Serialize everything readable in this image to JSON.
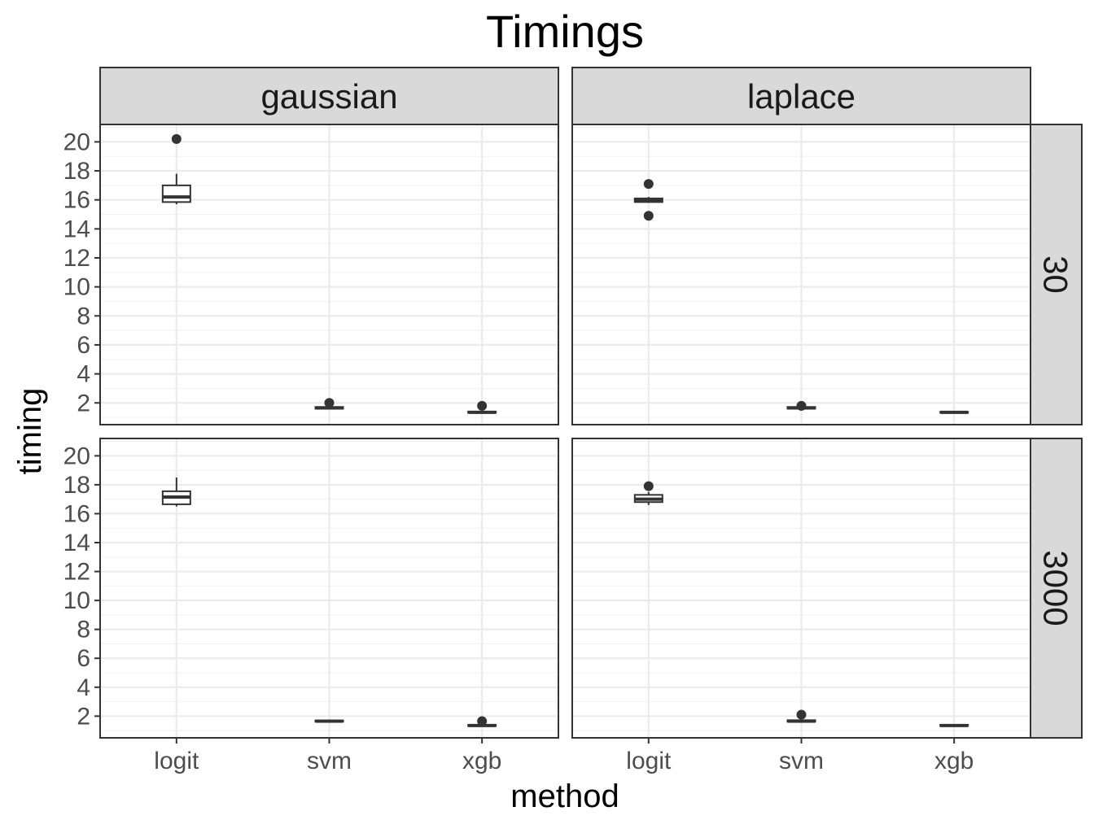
{
  "chart_data": {
    "type": "boxplot",
    "title": "Timings",
    "xlabel": "method",
    "ylabel": "timing",
    "categories": [
      "logit",
      "svm",
      "xgb"
    ],
    "yticks": [
      2,
      4,
      6,
      8,
      10,
      12,
      14,
      16,
      18,
      20
    ],
    "ylim": [
      0.5,
      21.2
    ],
    "grid": true,
    "col_facets": [
      "gaussian",
      "laplace"
    ],
    "row_facets": [
      "30",
      "3000"
    ],
    "panels": [
      {
        "col": "gaussian",
        "row": "30",
        "boxes": [
          {
            "category": "logit",
            "min": 15.7,
            "q1": 15.85,
            "median": 16.2,
            "q3": 17.0,
            "max": 17.8,
            "outliers": [
              20.2
            ]
          },
          {
            "category": "svm",
            "min": 1.58,
            "q1": 1.6,
            "median": 1.65,
            "q3": 1.72,
            "max": 1.78,
            "outliers": [
              2.0
            ]
          },
          {
            "category": "xgb",
            "min": 1.3,
            "q1": 1.32,
            "median": 1.35,
            "q3": 1.4,
            "max": 1.45,
            "outliers": [
              1.8
            ]
          }
        ]
      },
      {
        "col": "laplace",
        "row": "30",
        "boxes": [
          {
            "category": "logit",
            "min": 15.8,
            "q1": 15.85,
            "median": 15.95,
            "q3": 16.1,
            "max": 16.2,
            "outliers": [
              17.1,
              14.9
            ]
          },
          {
            "category": "svm",
            "min": 1.58,
            "q1": 1.6,
            "median": 1.65,
            "q3": 1.72,
            "max": 1.75,
            "outliers": [
              1.8
            ]
          },
          {
            "category": "xgb",
            "min": 1.3,
            "q1": 1.32,
            "median": 1.35,
            "q3": 1.38,
            "max": 1.4,
            "outliers": []
          }
        ]
      },
      {
        "col": "gaussian",
        "row": "3000",
        "boxes": [
          {
            "category": "logit",
            "min": 16.5,
            "q1": 16.65,
            "median": 17.15,
            "q3": 17.55,
            "max": 18.5,
            "outliers": []
          },
          {
            "category": "svm",
            "min": 1.6,
            "q1": 1.62,
            "median": 1.65,
            "q3": 1.7,
            "max": 1.72,
            "outliers": []
          },
          {
            "category": "xgb",
            "min": 1.3,
            "q1": 1.32,
            "median": 1.35,
            "q3": 1.4,
            "max": 1.45,
            "outliers": [
              1.65
            ]
          }
        ]
      },
      {
        "col": "laplace",
        "row": "3000",
        "boxes": [
          {
            "category": "logit",
            "min": 16.6,
            "q1": 16.8,
            "median": 17.0,
            "q3": 17.3,
            "max": 17.5,
            "outliers": [
              17.9
            ]
          },
          {
            "category": "svm",
            "min": 1.6,
            "q1": 1.62,
            "median": 1.65,
            "q3": 1.72,
            "max": 1.78,
            "outliers": [
              2.1
            ]
          },
          {
            "category": "xgb",
            "min": 1.3,
            "q1": 1.32,
            "median": 1.35,
            "q3": 1.4,
            "max": 1.45,
            "outliers": []
          }
        ]
      }
    ]
  },
  "colors": {
    "box_stroke": "#333333",
    "panel_border": "#333333",
    "strip_fill": "#d9d9d9",
    "grid_major": "#ebebeb",
    "grid_minor": "#f3f3f3"
  }
}
